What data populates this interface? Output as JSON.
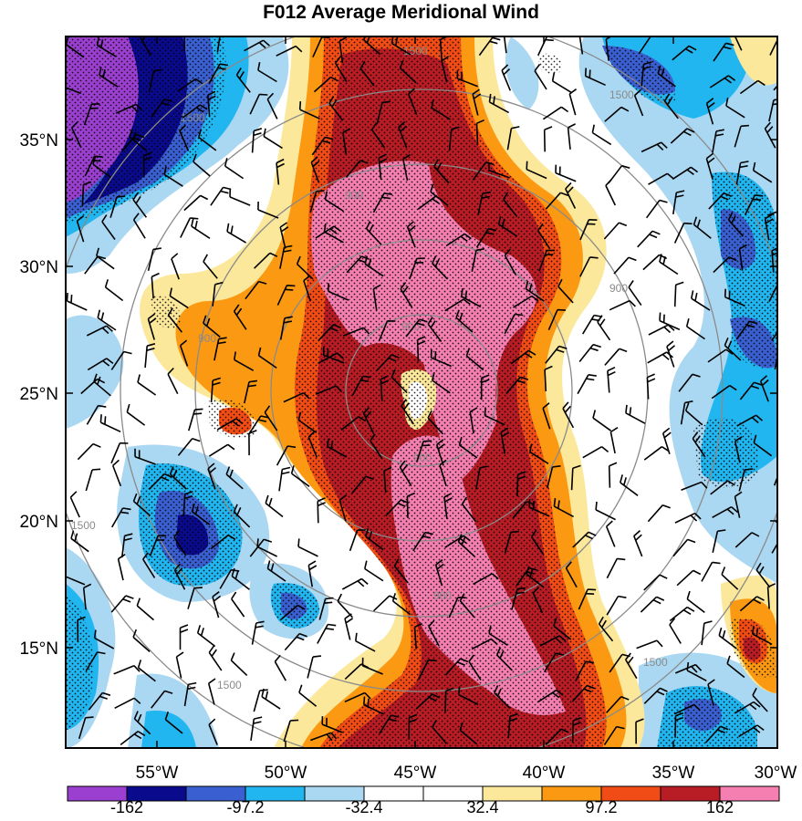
{
  "title": "F012 Average Meridional Wind",
  "lon_ticks": [
    "55°W",
    "50°W",
    "45°W",
    "40°W",
    "35°W",
    "30°W"
  ],
  "lat_ticks": [
    "35°N",
    "30°N",
    "25°N",
    "20°N",
    "15°N"
  ],
  "ring_labels": [
    "900",
    "900",
    "900",
    "900",
    "900",
    "900",
    "1500",
    "1500",
    "1500",
    "1500",
    "1500",
    "1500"
  ],
  "colorbar": {
    "colors": [
      "#9b3fd0",
      "#0a0a8c",
      "#3a5fd0",
      "#22b6f0",
      "#aad8f2",
      "#ffffff",
      "#ffffff",
      "#fbe89a",
      "#fb9a12",
      "#f24c16",
      "#b81c24",
      "#f57fb0"
    ],
    "labels": [
      "-162",
      "-97.2",
      "-32.4",
      "32.4",
      "97.2",
      "162"
    ]
  },
  "chart_data": {
    "type": "map",
    "title": "F012 Average Meridional Wind",
    "xlabel": "",
    "ylabel": "",
    "x_range": [
      "57.5°W",
      "30°W"
    ],
    "y_range": [
      "11°N",
      "38.5°N"
    ],
    "colorbar_levels": [
      -162,
      -97.2,
      -32.4,
      32.4,
      97.2,
      162
    ],
    "contour_ring_values": [
      900,
      1500
    ],
    "features": [
      "stippled significance regions",
      "wind barbs",
      "strong positive meridional wind band along ~43°W–37°W",
      "negative meridional wind in northwest corner"
    ]
  }
}
